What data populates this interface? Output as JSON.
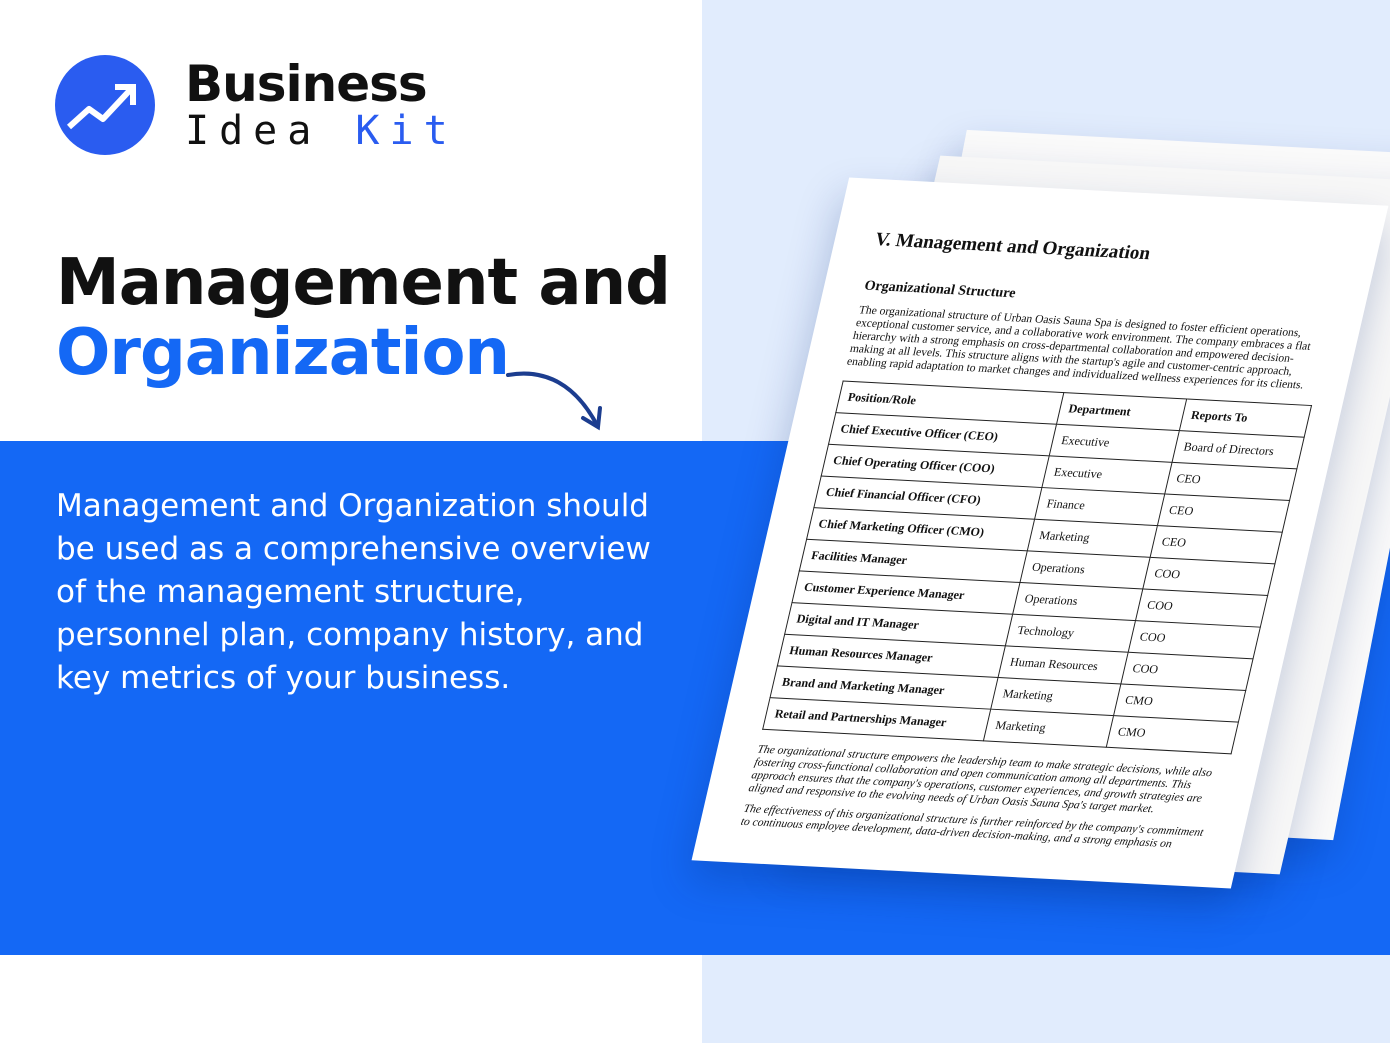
{
  "brand": {
    "line1": "Business",
    "line2a": "Idea",
    "line2b": "Kit",
    "accent": "#1468f5"
  },
  "hero": {
    "title_line1": "Management and",
    "title_line2": "Organization",
    "description": "Management and Organization should be used as a comprehensive overview of the management structure, personnel plan, company history, and key metrics of your business."
  },
  "document": {
    "heading": "V. Management and Organization",
    "subheading": "Organizational Structure",
    "intro": "The organizational structure of Urban Oasis Sauna Spa is designed to foster efficient operations, exceptional customer service, and a collaborative work environment. The company embraces a flat hierarchy with a strong emphasis on cross-departmental collaboration and empowered decision-making at all levels. This structure aligns with the startup's agile and customer-centric approach, enabling rapid adaptation to market changes and individualized wellness experiences for its clients.",
    "columns": [
      "Position/Role",
      "Department",
      "Reports To"
    ],
    "rows": [
      [
        "Chief Executive Officer (CEO)",
        "Executive",
        "Board of Directors"
      ],
      [
        "Chief Operating Officer (COO)",
        "Executive",
        "CEO"
      ],
      [
        "Chief Financial Officer (CFO)",
        "Finance",
        "CEO"
      ],
      [
        "Chief Marketing Officer (CMO)",
        "Marketing",
        "CEO"
      ],
      [
        "Facilities Manager",
        "Operations",
        "COO"
      ],
      [
        "Customer Experience Manager",
        "Operations",
        "COO"
      ],
      [
        "Digital and IT Manager",
        "Technology",
        "COO"
      ],
      [
        "Human Resources Manager",
        "Human Resources",
        "COO"
      ],
      [
        "Brand and Marketing Manager",
        "Marketing",
        "CMO"
      ],
      [
        "Retail and Partnerships Manager",
        "Marketing",
        "CMO"
      ]
    ],
    "para2": "The organizational structure empowers the leadership team to make strategic decisions, while also fostering cross-functional collaboration and open communication among all departments. This approach ensures that the company's operations, customer experiences, and growth strategies are aligned and responsive to the evolving needs of Urban Oasis Sauna Spa's target market.",
    "para3": "The effectiveness of this organizational structure is further reinforced by the company's commitment to continuous employee development, data-driven decision-making, and a strong emphasis on"
  }
}
